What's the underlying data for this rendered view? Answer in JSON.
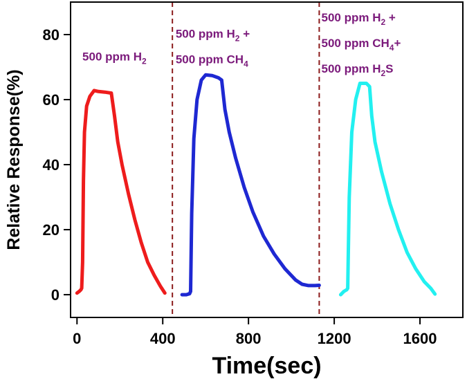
{
  "chart_data": {
    "type": "line",
    "title": "",
    "xlabel": "Time(sec)",
    "ylabel": "Relative Response(%)",
    "xlim": [
      -30,
      1800
    ],
    "ylim": [
      -7,
      90
    ],
    "xticks": [
      0,
      400,
      800,
      1200,
      1600
    ],
    "yticks": [
      0,
      20,
      40,
      60,
      80
    ],
    "grid": false,
    "dividers": [
      445,
      1130
    ],
    "annotations": [
      {
        "lines": [
          [
            {
              "t": "500 ppm H"
            },
            {
              "t": "2",
              "sub": true
            }
          ]
        ],
        "x": 25,
        "y": 72
      },
      {
        "lines": [
          [
            {
              "t": "500 ppm H"
            },
            {
              "t": "2",
              "sub": true
            },
            {
              "t": " +"
            }
          ],
          [
            {
              "t": "500 ppm CH"
            },
            {
              "t": "4",
              "sub": true
            }
          ]
        ],
        "x": 460,
        "y": 79
      },
      {
        "lines": [
          [
            {
              "t": "500 ppm H"
            },
            {
              "t": "2",
              "sub": true
            },
            {
              "t": " +"
            }
          ],
          [
            {
              "t": "500 ppm CH"
            },
            {
              "t": "4",
              "sub": true
            },
            {
              "t": "+"
            }
          ],
          [
            {
              "t": "500 ppm H"
            },
            {
              "t": "2",
              "sub": true
            },
            {
              "t": "S"
            }
          ]
        ],
        "x": 1140,
        "y": 84
      }
    ],
    "series": [
      {
        "color": "#ee1c1c",
        "points": [
          [
            0,
            0.5
          ],
          [
            10,
            1
          ],
          [
            18,
            1.5
          ],
          [
            22,
            2
          ],
          [
            26,
            10
          ],
          [
            30,
            35
          ],
          [
            35,
            50
          ],
          [
            45,
            58
          ],
          [
            60,
            61
          ],
          [
            80,
            62.8
          ],
          [
            100,
            62.5
          ],
          [
            130,
            62.3
          ],
          [
            160,
            62
          ],
          [
            175,
            55
          ],
          [
            190,
            47
          ],
          [
            210,
            40
          ],
          [
            240,
            31
          ],
          [
            270,
            23
          ],
          [
            300,
            16
          ],
          [
            330,
            10
          ],
          [
            360,
            6
          ],
          [
            390,
            2.5
          ],
          [
            410,
            0.5
          ]
        ]
      },
      {
        "color": "#1e28d2",
        "points": [
          [
            490,
            0
          ],
          [
            510,
            0
          ],
          [
            525,
            0.3
          ],
          [
            530,
            1
          ],
          [
            535,
            25
          ],
          [
            545,
            48
          ],
          [
            560,
            60
          ],
          [
            580,
            66
          ],
          [
            600,
            67.6
          ],
          [
            630,
            67.4
          ],
          [
            660,
            66.7
          ],
          [
            675,
            66
          ],
          [
            690,
            57
          ],
          [
            710,
            50
          ],
          [
            740,
            42
          ],
          [
            780,
            33
          ],
          [
            820,
            25.5
          ],
          [
            870,
            18
          ],
          [
            920,
            12.5
          ],
          [
            970,
            8
          ],
          [
            1020,
            4.5
          ],
          [
            1050,
            3.2
          ],
          [
            1080,
            2.8
          ],
          [
            1110,
            2.8
          ],
          [
            1130,
            2.9
          ]
        ]
      },
      {
        "color": "#22f0f0",
        "points": [
          [
            1230,
            0
          ],
          [
            1245,
            1
          ],
          [
            1258,
            1.5
          ],
          [
            1263,
            2
          ],
          [
            1270,
            30
          ],
          [
            1282,
            50
          ],
          [
            1300,
            60
          ],
          [
            1320,
            65
          ],
          [
            1350,
            65
          ],
          [
            1365,
            64
          ],
          [
            1375,
            55
          ],
          [
            1390,
            47
          ],
          [
            1420,
            38
          ],
          [
            1460,
            28
          ],
          [
            1500,
            20
          ],
          [
            1540,
            13
          ],
          [
            1580,
            8
          ],
          [
            1620,
            4
          ],
          [
            1650,
            2
          ],
          [
            1670,
            0.2
          ]
        ]
      }
    ]
  }
}
